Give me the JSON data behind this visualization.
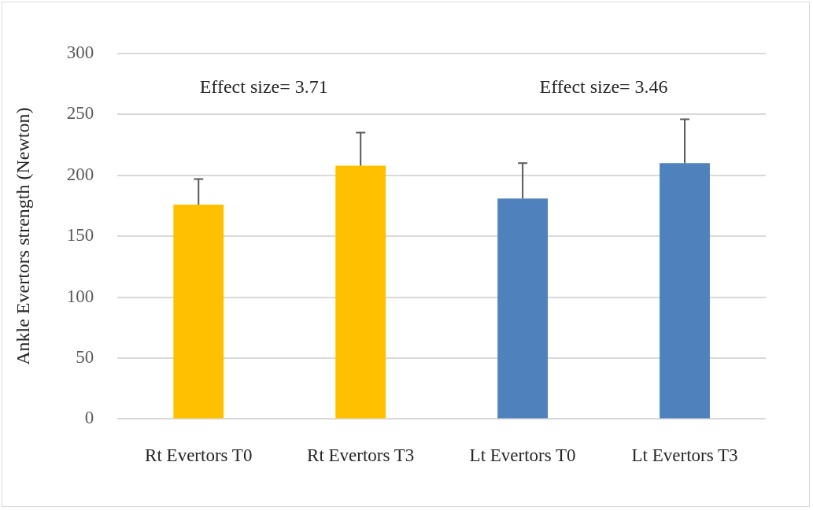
{
  "chart_data": {
    "type": "bar",
    "ylabel": "Ankle Evertors strength (Newton)",
    "categories": [
      "Rt Evertors T0",
      "Rt Evertors T3",
      "Lt Evertors T0",
      "Lt Evertors T3"
    ],
    "values": [
      176,
      208,
      181,
      210
    ],
    "colors": [
      "#ffc000",
      "#ffc000",
      "#4f81bd",
      "#4f81bd"
    ],
    "errors": [
      [
        176,
        197
      ],
      [
        208,
        235
      ],
      [
        181,
        210
      ],
      [
        210,
        246
      ]
    ],
    "ylim": [
      0,
      300
    ],
    "yticks": [
      0,
      50,
      100,
      150,
      200,
      250,
      300
    ],
    "grid": "y",
    "annotations": [
      "Effect size= 3.71",
      "Effect size= 3.46"
    ]
  }
}
